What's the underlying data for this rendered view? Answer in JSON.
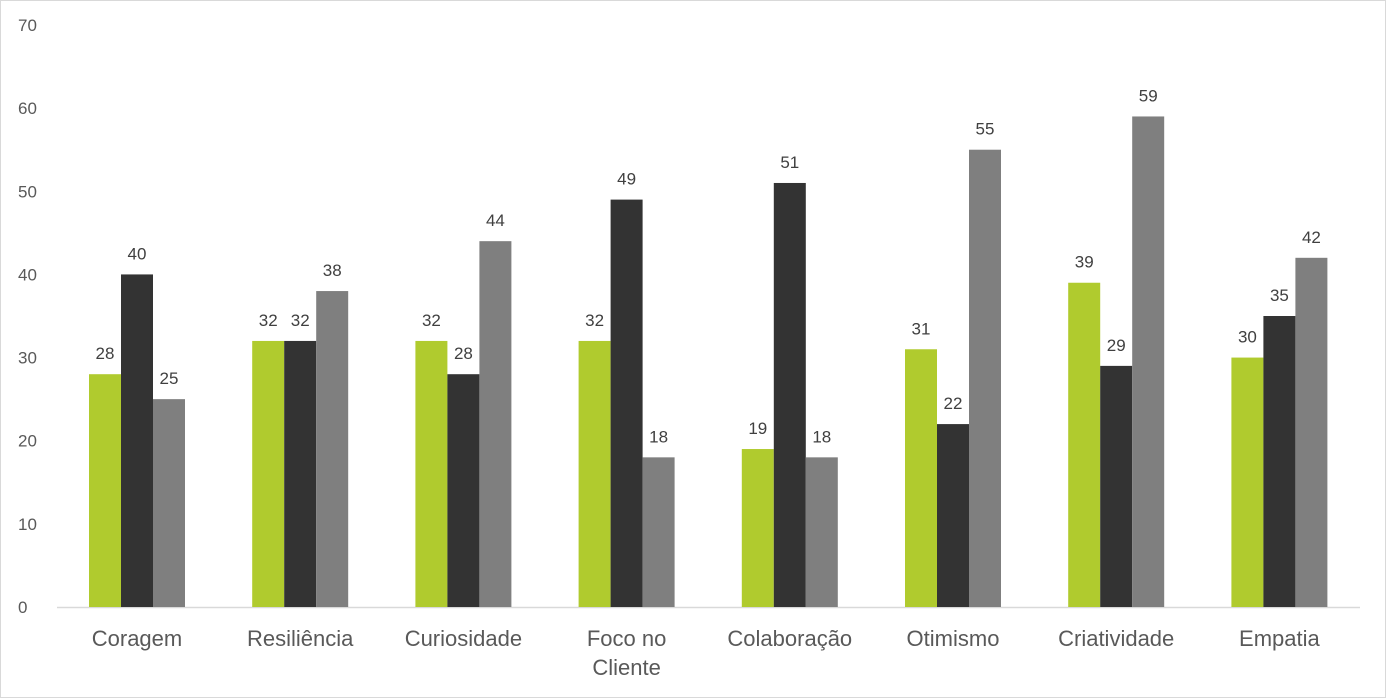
{
  "chart_data": {
    "type": "bar",
    "categories": [
      "Coragem",
      "Resiliência",
      "Curiosidade",
      "Foco no Cliente",
      "Colaboração",
      "Otimismo",
      "Criatividade",
      "Empatia"
    ],
    "category_lines": [
      [
        "Coragem"
      ],
      [
        "Resiliência"
      ],
      [
        "Curiosidade"
      ],
      [
        "Foco no",
        "Cliente"
      ],
      [
        "Colaboração"
      ],
      [
        "Otimismo"
      ],
      [
        "Criatividade"
      ],
      [
        "Empatia"
      ]
    ],
    "series": [
      {
        "values": [
          28,
          32,
          32,
          32,
          19,
          31,
          39,
          30
        ],
        "color": "#b0cb2e"
      },
      {
        "values": [
          40,
          32,
          28,
          49,
          51,
          22,
          29,
          35
        ],
        "color": "#333333"
      },
      {
        "values": [
          25,
          38,
          44,
          18,
          18,
          55,
          59,
          42
        ],
        "color": "#7f7f7f"
      }
    ],
    "yticks": [
      0,
      10,
      20,
      30,
      40,
      50,
      60,
      70
    ],
    "ylim": [
      0,
      70
    ],
    "data_labels": true,
    "grid": false,
    "legend": "none"
  }
}
